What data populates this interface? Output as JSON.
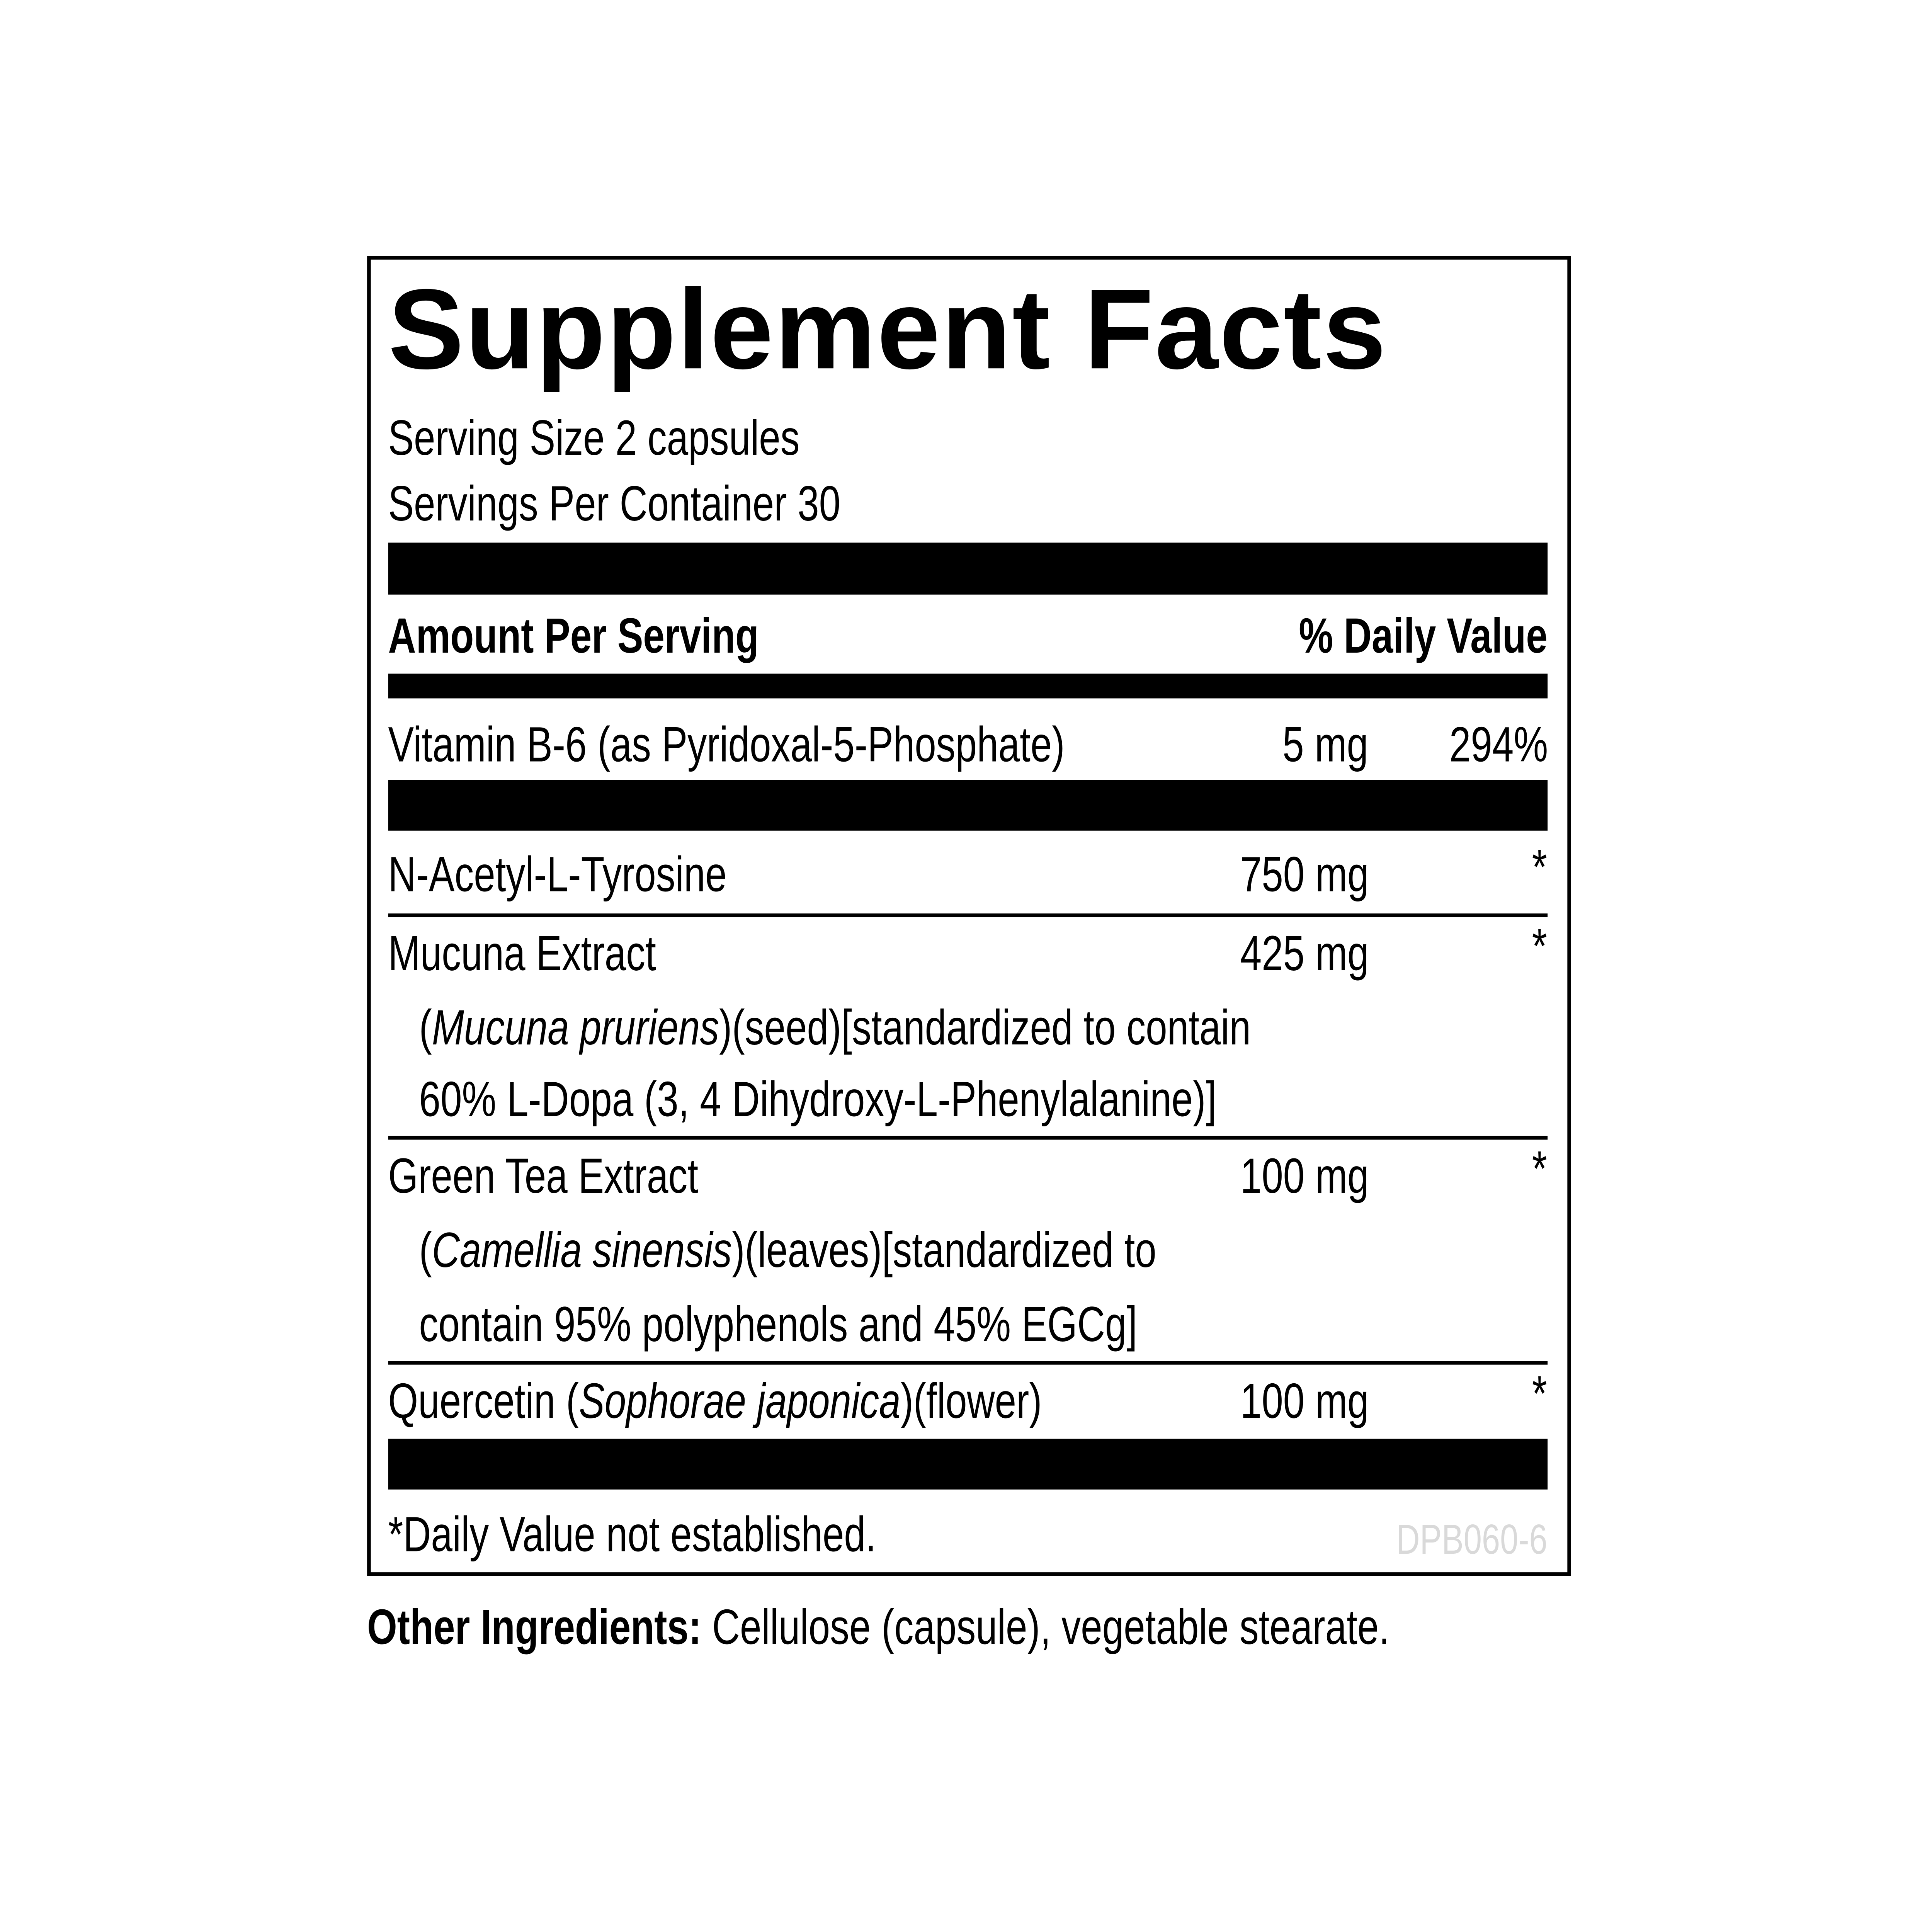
{
  "title": "Supplement Facts",
  "serving_size": "Serving Size 2 capsules",
  "servings_per_container": "Servings Per Container 30",
  "header": {
    "amount": "Amount Per Serving",
    "dv": "% Daily Value"
  },
  "vitamin": {
    "name": "Vitamin B-6 (as Pyridoxal-5-Phosphate)",
    "amount": "5 mg",
    "dv": "294%"
  },
  "ingredients": [
    {
      "name": "N-Acetyl-L-Tyrosine",
      "amount": "750 mg",
      "dv": "*"
    },
    {
      "name": "Mucuna Extract",
      "amount": "425 mg",
      "dv": "*",
      "detail_open": "(",
      "latin": "Mucuna pruriens",
      "detail_rest": ")(seed)[standardized to contain",
      "detail_line2": "60% L-Dopa (3, 4 Dihydroxy-L-Phenylalanine)]"
    },
    {
      "name": "Green Tea Extract",
      "amount": "100 mg",
      "dv": "*",
      "detail_open": "(",
      "latin": "Camellia sinensis",
      "detail_rest": ")(leaves)[standardized to",
      "detail_line2": "contain 95% polyphenols and 45% EGCg]"
    },
    {
      "name_pre": "Quercetin (",
      "latin": "Sophorae japonica",
      "name_post": ")(flower)",
      "amount": "100 mg",
      "dv": "*"
    }
  ],
  "footnote": "*Daily Value not established.",
  "code": "DPB060-6",
  "other_ingredients": {
    "label": "Other Ingredients:",
    "text": " Cellulose (capsule), vegetable stearate."
  },
  "colors": {
    "text": "#000000",
    "code": "#d9d9d9",
    "background": "#ffffff"
  }
}
